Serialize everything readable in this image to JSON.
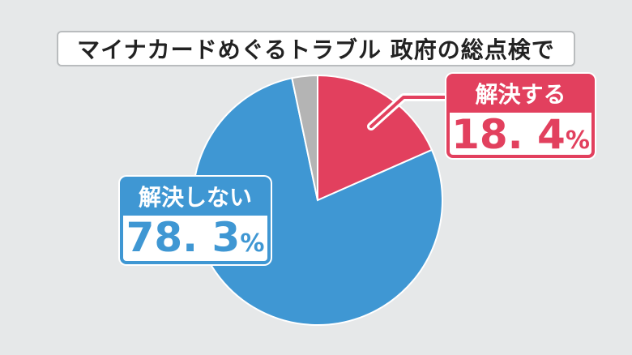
{
  "chart_data": {
    "type": "pie",
    "title": "マイナカードめぐるトラブル 政府の総点検で",
    "slices": [
      {
        "label": "解決する",
        "value": 18.4,
        "color": "#e2405e"
      },
      {
        "label": "解決しない",
        "value": 78.3,
        "color": "#3f97d3"
      },
      {
        "label": "",
        "value": 3.3,
        "color": "#b4b4b4"
      }
    ],
    "start_angle": "top",
    "direction": "clockwise",
    "labels": {
      "yes": {
        "text": "解決する",
        "number": "18. 4",
        "unit": "%"
      },
      "no": {
        "text": "解決しない",
        "number": "78. 3",
        "unit": "%"
      }
    }
  }
}
